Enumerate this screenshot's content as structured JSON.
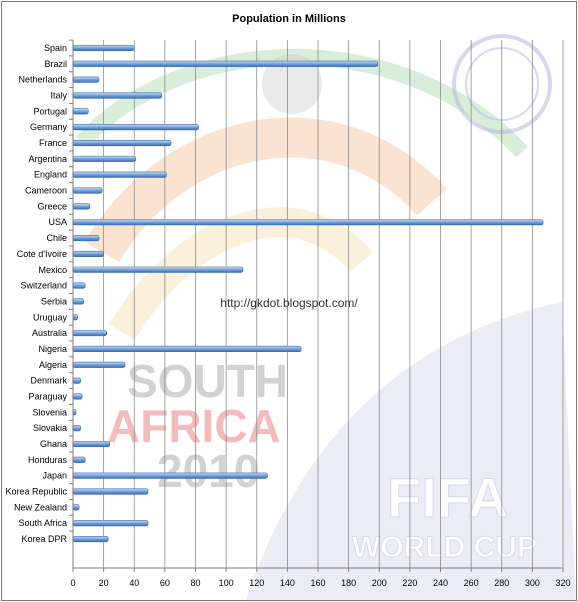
{
  "chart_data": {
    "type": "bar",
    "orientation": "horizontal",
    "title": "Population in Millions",
    "categories": [
      "Spain",
      "Brazil",
      "Netherlands",
      "Italy",
      "Portugal",
      "Germany",
      "France",
      "Argentina",
      "England",
      "Cameroon",
      "Greece",
      "USA",
      "Chile",
      "Cote d'Ivoire",
      "Mexico",
      "Switzerland",
      "Serbia",
      "Uruguay",
      "Australia",
      "Nigeria",
      "Algeria",
      "Denmark",
      "Paraguay",
      "Slovenia",
      "Slovakia",
      "Ghana",
      "Honduras",
      "Japan",
      "Korea Republic",
      "New Zealand",
      "South Africa",
      "Korea DPR"
    ],
    "values": [
      40,
      199,
      17,
      58,
      10,
      82,
      64,
      41,
      61,
      19,
      11,
      307,
      17,
      20,
      111,
      8,
      7,
      3,
      22,
      149,
      34,
      5,
      6,
      2,
      5,
      24,
      8,
      127,
      49,
      4,
      49,
      23
    ],
    "xlim": [
      0,
      320
    ],
    "xticks": [
      0,
      20,
      40,
      60,
      80,
      100,
      120,
      140,
      160,
      180,
      200,
      220,
      240,
      260,
      280,
      300,
      320
    ],
    "grid": "vertical",
    "bar_color": "#5b8fd1"
  },
  "watermark": "http://gkdot.blogspot.com/",
  "background_art": {
    "text_lines": [
      "SOUTH",
      "AFRICA",
      "2010",
      "FIFA",
      "WORLD CUP"
    ]
  }
}
